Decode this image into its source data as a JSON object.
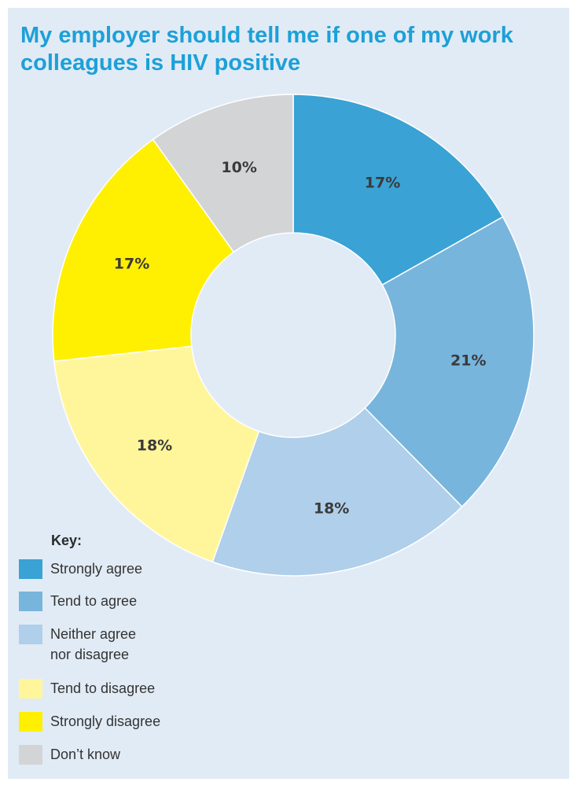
{
  "chart_data": {
    "type": "pie",
    "title": "My employer should tell me if one of my work colleagues is HIV positive",
    "donut": true,
    "legend_title": "Key:",
    "legend_position": "bottom-left",
    "slices": [
      {
        "label": "Strongly agree",
        "value": 17,
        "display": "17%",
        "color": "#3aa2d4"
      },
      {
        "label": "Tend to agree",
        "value": 21,
        "display": "21%",
        "color": "#77b5dd"
      },
      {
        "label": "Neither agree\nnor disagree",
        "value": 18,
        "display": "18%",
        "color": "#afcfea"
      },
      {
        "label": "Tend to disagree",
        "value": 18,
        "display": "18%",
        "color": "#fff69c"
      },
      {
        "label": "Strongly disagree",
        "value": 17,
        "display": "17%",
        "color": "#ffef00"
      },
      {
        "label": "Don’t know",
        "value": 10,
        "display": "10%",
        "color": "#d3d4d6"
      }
    ]
  }
}
